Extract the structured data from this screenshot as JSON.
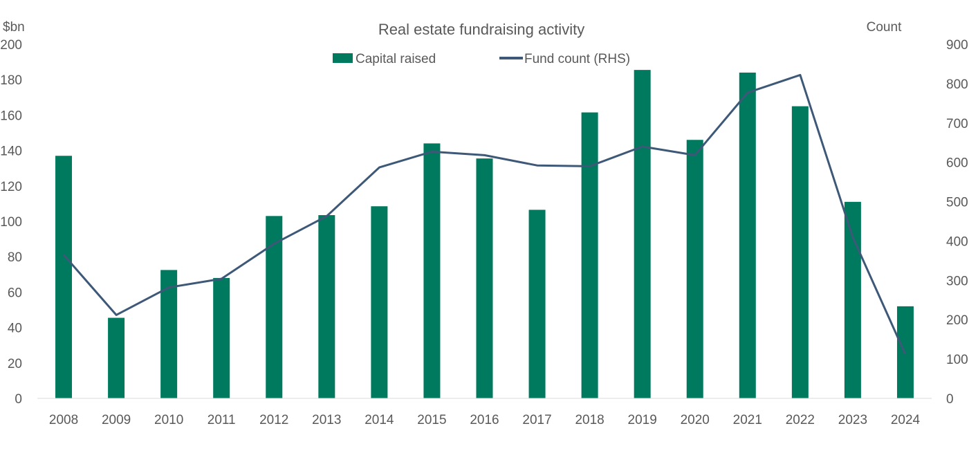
{
  "chart_data": {
    "type": "bar+line",
    "title": "Real estate fundraising activity",
    "y_left_label": "$bn",
    "y_right_label": "Count",
    "y_left_lim": [
      0,
      200
    ],
    "y_left_ticks": [
      0,
      20,
      40,
      60,
      80,
      100,
      120,
      140,
      160,
      180,
      200
    ],
    "y_right_lim": [
      0,
      900
    ],
    "y_right_ticks": [
      0,
      100,
      200,
      300,
      400,
      500,
      600,
      700,
      800,
      900
    ],
    "categories": [
      "2008",
      "2009",
      "2010",
      "2011",
      "2012",
      "2013",
      "2014",
      "2015",
      "2016",
      "2017",
      "2018",
      "2019",
      "2020",
      "2021",
      "2022",
      "2023",
      "2024"
    ],
    "series": [
      {
        "name": "Capital raised",
        "type": "bar",
        "axis": "left",
        "color": "#007a5e",
        "values": [
          137,
          45.5,
          72.5,
          68,
          103,
          103.5,
          108.5,
          144,
          135.5,
          106.5,
          161.5,
          185.5,
          146,
          184,
          165,
          111,
          52
        ]
      },
      {
        "name": "Fund count (RHS)",
        "type": "line",
        "axis": "right",
        "color": "#3e5878",
        "values": [
          365,
          212,
          282,
          304,
          393,
          463,
          587,
          627,
          618,
          592,
          590,
          640,
          618,
          777,
          822,
          410,
          112
        ]
      }
    ],
    "legend_position": "top-center",
    "grid": false
  }
}
